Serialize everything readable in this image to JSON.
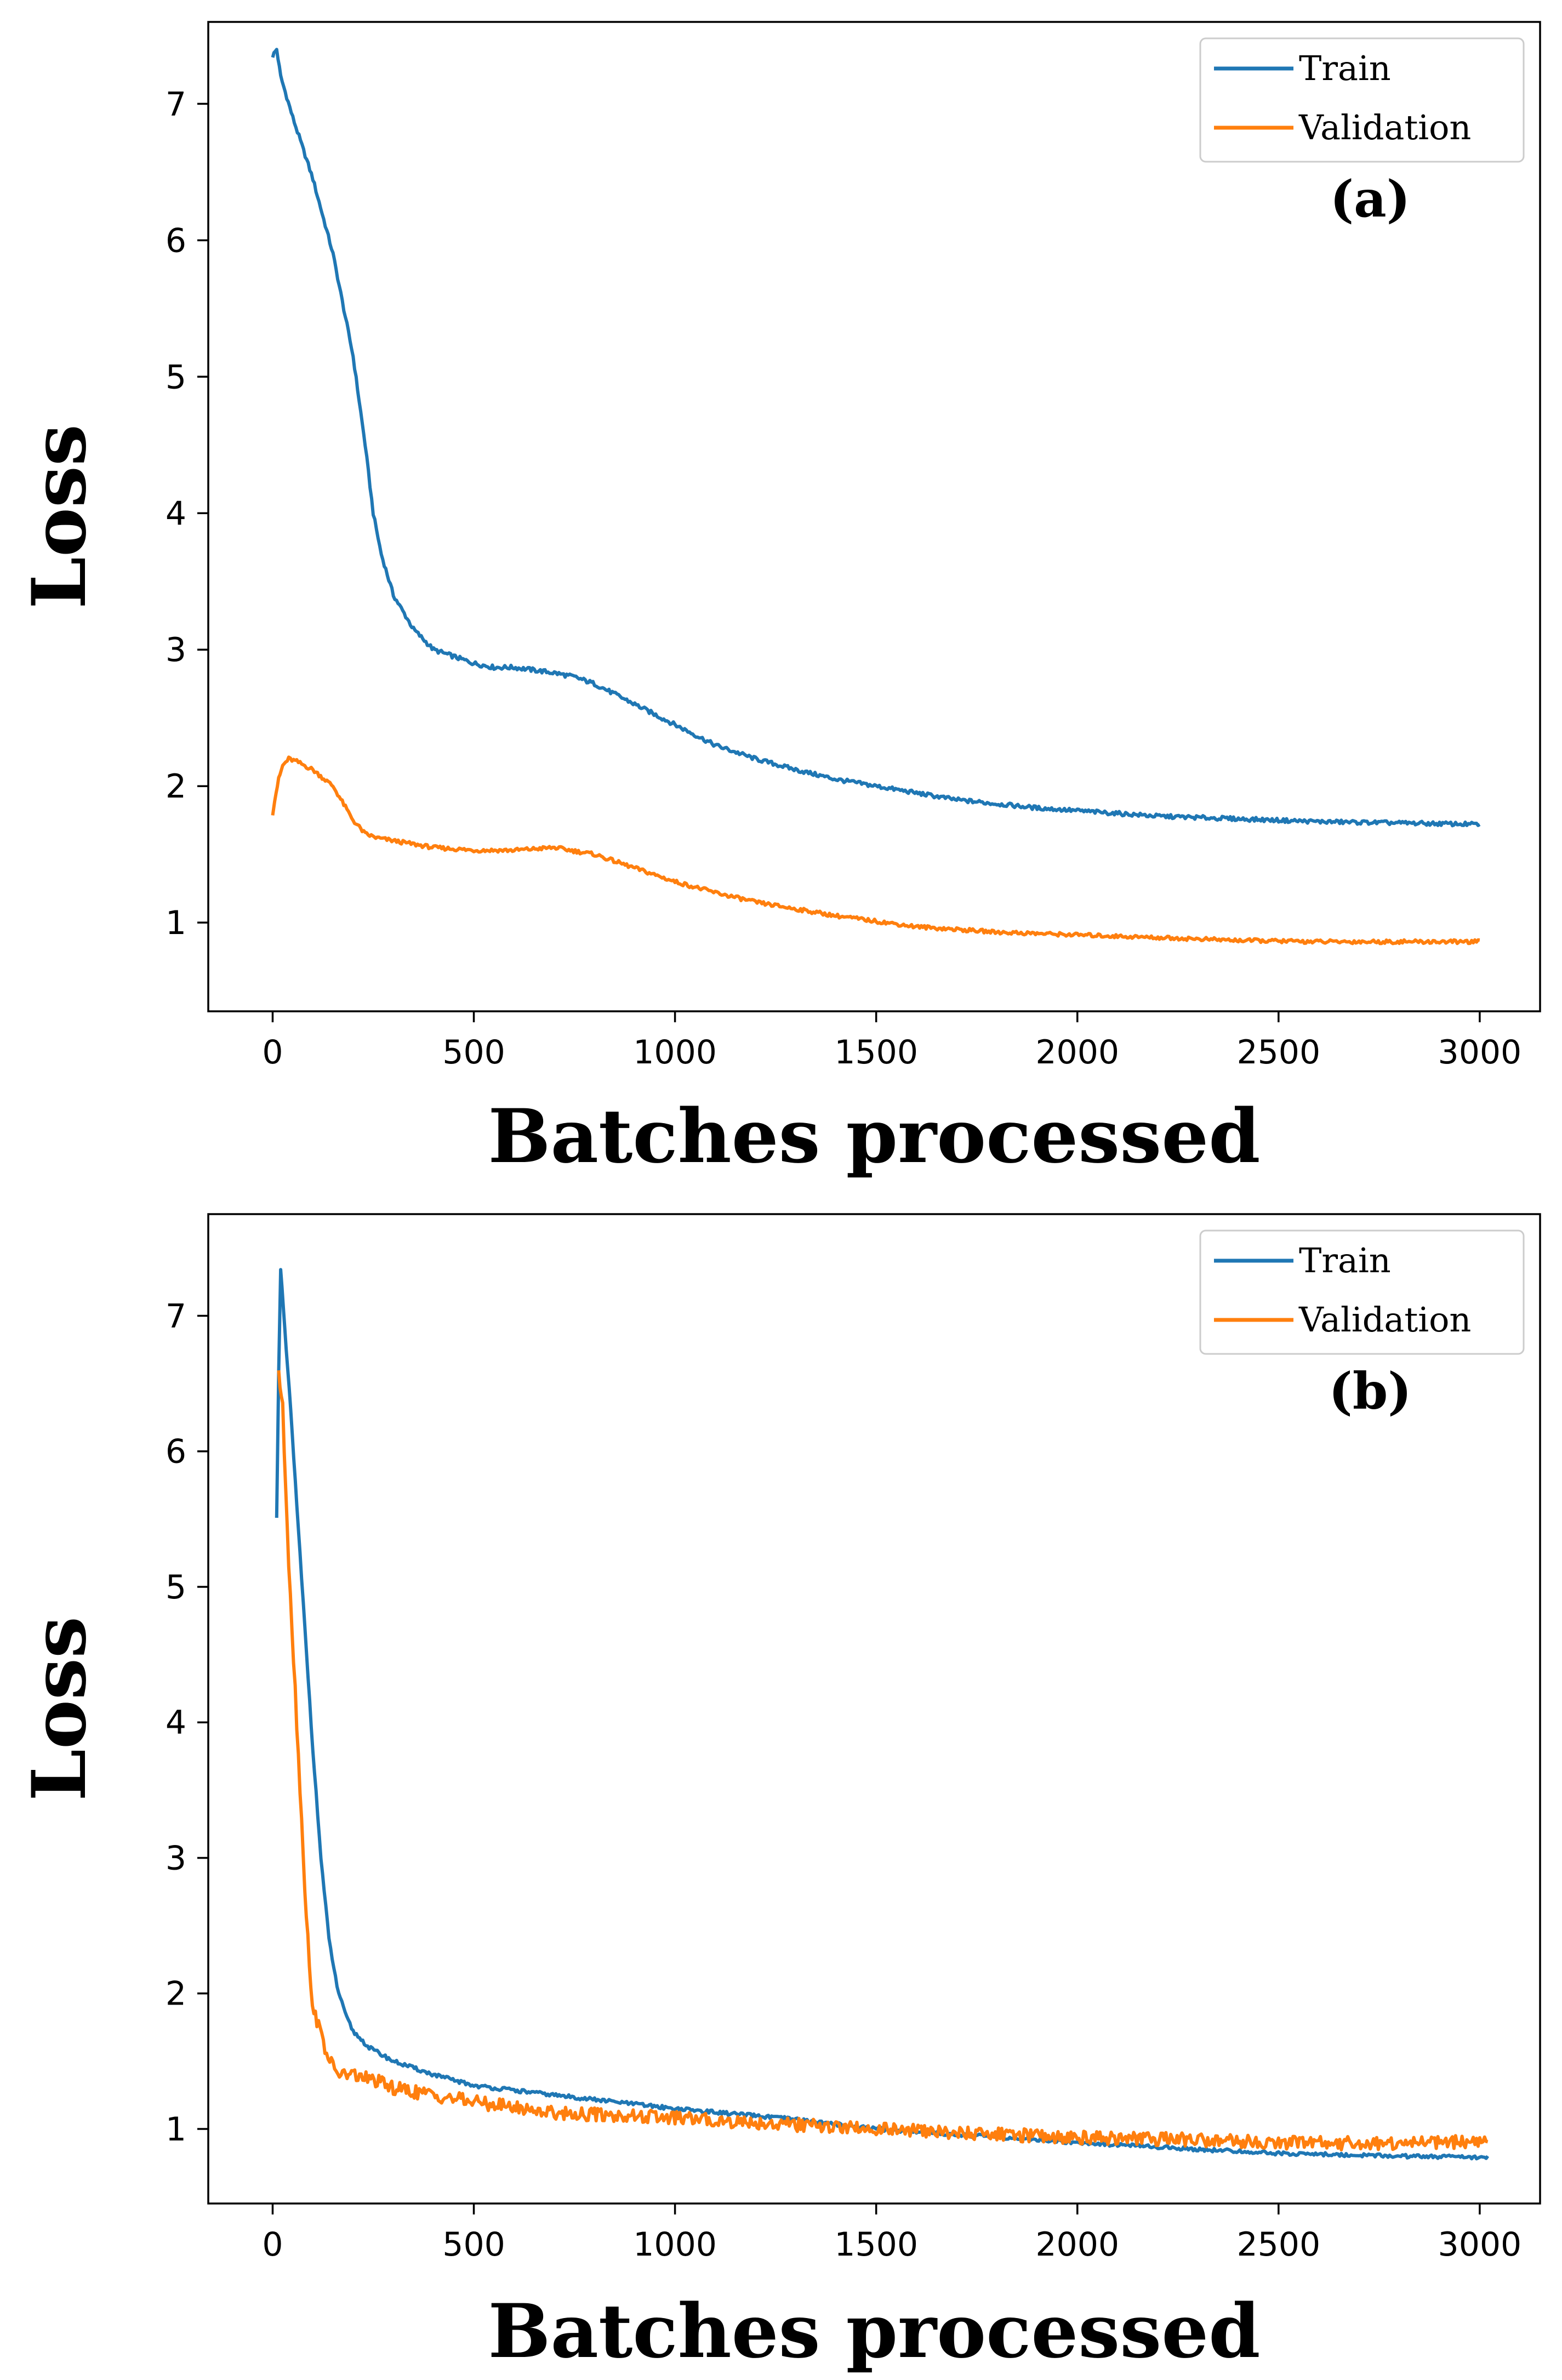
{
  "colors": {
    "train": "#1f77b4",
    "validation": "#ff7f0e"
  },
  "chart_data": [
    {
      "type": "line",
      "panel_label": "(a)",
      "xlabel": "Batches processed",
      "ylabel": "Loss",
      "xlim": [
        -160,
        3150
      ],
      "ylim": [
        0.35,
        7.6
      ],
      "xticks": [
        0,
        500,
        1000,
        1500,
        2000,
        2500,
        3000
      ],
      "yticks": [
        1,
        2,
        3,
        4,
        5,
        6,
        7
      ],
      "legend_position": "top-right",
      "series": [
        {
          "name": "Train",
          "color": "#1f77b4",
          "x": [
            0,
            10,
            20,
            50,
            100,
            150,
            200,
            230,
            250,
            270,
            300,
            350,
            400,
            450,
            500,
            550,
            600,
            650,
            700,
            750,
            800,
            900,
            1000,
            1100,
            1200,
            1300,
            1400,
            1500,
            1600,
            1700,
            1800,
            1900,
            2000,
            2200,
            2400,
            2600,
            2800,
            3000
          ],
          "y": [
            7.35,
            7.4,
            7.2,
            6.9,
            6.45,
            5.9,
            5.15,
            4.5,
            4.0,
            3.7,
            3.4,
            3.15,
            3.0,
            2.95,
            2.9,
            2.87,
            2.87,
            2.85,
            2.83,
            2.8,
            2.75,
            2.6,
            2.45,
            2.3,
            2.2,
            2.12,
            2.05,
            2.0,
            1.95,
            1.9,
            1.87,
            1.84,
            1.82,
            1.78,
            1.76,
            1.74,
            1.73,
            1.72
          ]
        },
        {
          "name": "Validation",
          "color": "#ff7f0e",
          "x": [
            0,
            5,
            15,
            25,
            40,
            60,
            100,
            150,
            200,
            230,
            260,
            300,
            400,
            500,
            600,
            700,
            800,
            900,
            1000,
            1100,
            1200,
            1300,
            1400,
            1500,
            1600,
            1700,
            1800,
            2000,
            2200,
            2400,
            2600,
            2800,
            3000
          ],
          "y": [
            1.8,
            1.9,
            2.05,
            2.15,
            2.2,
            2.18,
            2.12,
            2.0,
            1.75,
            1.65,
            1.62,
            1.6,
            1.55,
            1.53,
            1.53,
            1.55,
            1.5,
            1.4,
            1.3,
            1.22,
            1.15,
            1.1,
            1.05,
            1.01,
            0.97,
            0.95,
            0.93,
            0.91,
            0.89,
            0.87,
            0.86,
            0.86,
            0.86
          ]
        }
      ]
    },
    {
      "type": "line",
      "panel_label": "(b)",
      "xlabel": "Batches processed",
      "ylabel": "Loss",
      "xlim": [
        -160,
        3150
      ],
      "ylim": [
        0.45,
        7.75
      ],
      "xticks": [
        0,
        500,
        1000,
        1500,
        2000,
        2500,
        3000
      ],
      "yticks": [
        1,
        2,
        3,
        4,
        5,
        6,
        7
      ],
      "legend_position": "top-right",
      "series": [
        {
          "name": "Train",
          "color": "#1f77b4",
          "x": [
            10,
            15,
            20,
            30,
            45,
            60,
            80,
            100,
            120,
            140,
            160,
            180,
            200,
            240,
            300,
            400,
            500,
            700,
            1000,
            1300,
            1500,
            1700,
            2000,
            2300,
            2500,
            2800,
            3020
          ],
          "y": [
            5.5,
            6.6,
            7.35,
            6.9,
            6.3,
            5.6,
            4.7,
            3.8,
            3.0,
            2.4,
            2.05,
            1.85,
            1.72,
            1.6,
            1.5,
            1.4,
            1.32,
            1.25,
            1.15,
            1.07,
            1.0,
            0.96,
            0.9,
            0.85,
            0.82,
            0.8,
            0.79
          ]
        },
        {
          "name": "Validation",
          "color": "#ff7f0e",
          "x": [
            15,
            25,
            40,
            60,
            80,
            95,
            110,
            130,
            150,
            170,
            200,
            260,
            300,
            400,
            500,
            700,
            1000,
            1300,
            1500,
            1700,
            2000,
            2300,
            2500,
            2800,
            3020
          ],
          "y": [
            6.6,
            6.3,
            5.2,
            4.0,
            2.8,
            2.0,
            1.8,
            1.6,
            1.45,
            1.4,
            1.4,
            1.35,
            1.3,
            1.25,
            1.2,
            1.12,
            1.08,
            1.03,
            1.0,
            0.97,
            0.94,
            0.92,
            0.9,
            0.89,
            0.91
          ]
        }
      ]
    }
  ]
}
